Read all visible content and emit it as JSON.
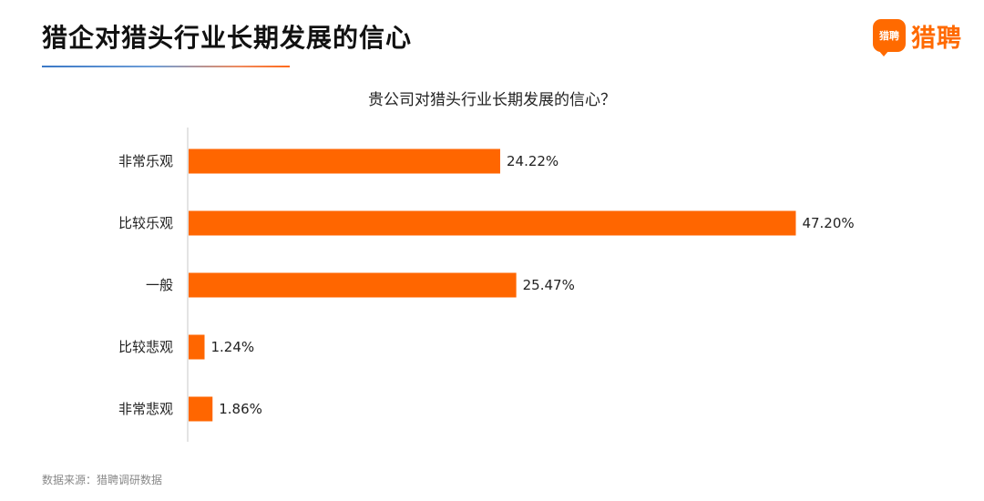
{
  "page_title": "猎企对猎头行业长期发展的信心",
  "logo": {
    "mark_text": "猎聘",
    "text": "猎聘",
    "color": "#ff6a00"
  },
  "source_note": "数据来源：猎聘调研数据",
  "chart_data": {
    "type": "bar",
    "orientation": "horizontal",
    "title": "贵公司对猎头行业长期发展的信心？",
    "categories": [
      "非常乐观",
      "比较乐观",
      "一般",
      "比较悲观",
      "非常悲观"
    ],
    "values": [
      24.22,
      47.2,
      25.47,
      1.24,
      1.86
    ],
    "value_labels": [
      "24.22%",
      "47.20%",
      "25.47%",
      "1.24%",
      "1.86%"
    ],
    "unit": "%",
    "xlim": [
      0,
      50
    ],
    "bar_color": "#ff6600",
    "grid": false,
    "legend": "none"
  }
}
